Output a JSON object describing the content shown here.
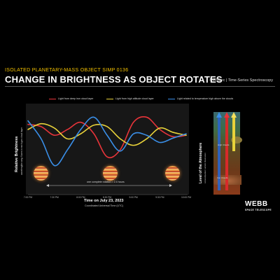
{
  "header": {
    "subtitle": "ISOLATED PLANETARY-MASS OBJECT SIMP 0136",
    "title": "CHANGE IN BRIGHTNESS AS OBJECT ROTATES",
    "instrument": "NIRSpec | Time-Series Spectroscopy"
  },
  "legend": [
    {
      "label": "Light from deep iron cloud layer",
      "color": "#e8343a"
    },
    {
      "label": "Light from high altitude cloud layer",
      "color": "#e8d23a"
    },
    {
      "label": "Light related to temperature high above the clouds",
      "color": "#3a8fe8"
    }
  ],
  "axes": {
    "ylabel": "Relative Brightness",
    "ylabel_sub": "wavelengths vary, fluxes in each gas cloud layer",
    "xlabel": "Time on July 23, 2023",
    "xlabel_sub": "Coordinated Universal Time (UTC)",
    "rotation_label": "one complete rotation = 2.4 hours"
  },
  "atmosphere": {
    "ylabel": "Level of the Atmosphere",
    "ylabel_sub": "colored/pattern artistic illustration",
    "label_high": "High Clouds",
    "label_deep": "Iron Clouds"
  },
  "logo": {
    "name": "WEBB",
    "sub": "SPACE TELESCOPE"
  },
  "colors": {
    "red": "#e8343a",
    "yellow": "#e8d23a",
    "blue": "#3a8fe8",
    "accent": "#f3c000"
  },
  "chart_data": {
    "type": "line",
    "title": "CHANGE IN BRIGHTNESS AS OBJECT ROTATES",
    "xlabel": "Time on July 23, 2023",
    "ylabel": "Relative Brightness",
    "x_ticks": [
      "7:00 PM",
      "7:30 PM",
      "8:00 PM",
      "8:30 PM",
      "9:00 PM",
      "9:30 PM",
      "10:00 PM"
    ],
    "x": [
      0.0,
      0.25,
      0.5,
      0.75,
      1.0,
      1.25,
      1.5,
      1.75,
      2.0,
      2.25,
      2.5,
      2.75,
      3.0
    ],
    "ylim": [
      0,
      1
    ],
    "grid": false,
    "legend_position": "top",
    "series": [
      {
        "name": "Light from deep iron cloud layer",
        "color": "#e8343a",
        "values": [
          0.75,
          0.72,
          0.6,
          0.68,
          0.78,
          0.62,
          0.3,
          0.4,
          0.78,
          0.85,
          0.68,
          0.58,
          0.6
        ]
      },
      {
        "name": "Light from high altitude cloud layer",
        "color": "#e8d23a",
        "values": [
          0.68,
          0.76,
          0.7,
          0.55,
          0.62,
          0.74,
          0.72,
          0.55,
          0.46,
          0.55,
          0.7,
          0.64,
          0.6
        ]
      },
      {
        "name": "Light related to temperature high above the clouds",
        "color": "#3a8fe8",
        "values": [
          0.8,
          0.55,
          0.18,
          0.4,
          0.68,
          0.85,
          0.6,
          0.38,
          0.62,
          0.6,
          0.5,
          0.56,
          0.62
        ]
      }
    ]
  }
}
